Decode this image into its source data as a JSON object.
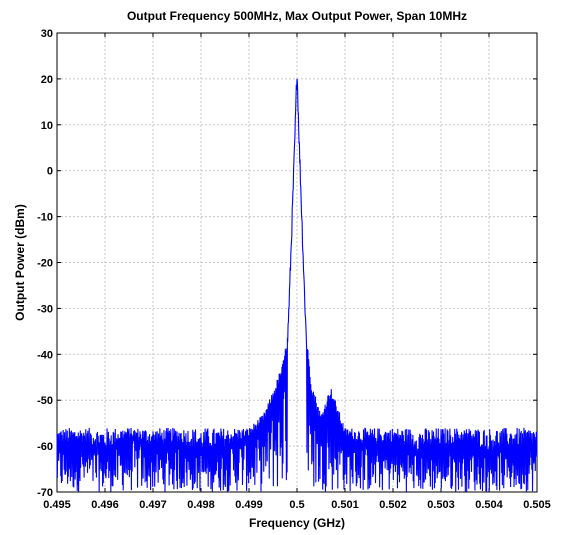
{
  "chart_data": {
    "type": "line",
    "title": "Output Frequency 500MHz, Max Output Power, Span 10MHz",
    "xlabel": "Frequency (GHz)",
    "ylabel": "Output Power (dBm)",
    "xlim": [
      0.495,
      0.505
    ],
    "ylim": [
      -70,
      30
    ],
    "x_ticks": [
      0.495,
      0.496,
      0.497,
      0.498,
      0.499,
      0.5,
      0.501,
      0.502,
      0.503,
      0.504,
      0.505
    ],
    "x_tick_labels": [
      "0.495",
      "0.496",
      "0.497",
      "0.498",
      "0.499",
      "0.5",
      "0.501",
      "0.502",
      "0.503",
      "0.504",
      "0.505"
    ],
    "y_ticks": [
      -70,
      -60,
      -50,
      -40,
      -30,
      -20,
      -10,
      0,
      10,
      20,
      30
    ],
    "y_tick_labels": [
      "-70",
      "-60",
      "-50",
      "-40",
      "-30",
      "-20",
      "-10",
      "0",
      "10",
      "20",
      "30"
    ],
    "grid": true,
    "series": [
      {
        "color": "#0000ff",
        "x": [
          0.495,
          0.4955,
          0.496,
          0.4965,
          0.497,
          0.4975,
          0.498,
          0.4985,
          0.499,
          0.4993,
          0.4995,
          0.4997,
          0.4998,
          0.49985,
          0.4999,
          0.49995,
          0.5,
          0.50005,
          0.5001,
          0.50015,
          0.5002,
          0.5003,
          0.5005,
          0.5006,
          0.5007,
          0.501,
          0.5015,
          0.502,
          0.5025,
          0.503,
          0.5035,
          0.504,
          0.5045,
          0.505
        ],
        "y": [
          -60,
          -59,
          -61,
          -58,
          -60,
          -59,
          -61,
          -60,
          -58,
          -55,
          -50,
          -44,
          -38,
          -25,
          -10,
          5,
          22,
          5,
          -10,
          -25,
          -38,
          -48,
          -55,
          -52,
          -49,
          -58,
          -60,
          -59,
          -61,
          -60,
          -59,
          -61,
          -60,
          -60
        ],
        "noise_floor_range": [
          -70,
          -56
        ]
      }
    ]
  }
}
